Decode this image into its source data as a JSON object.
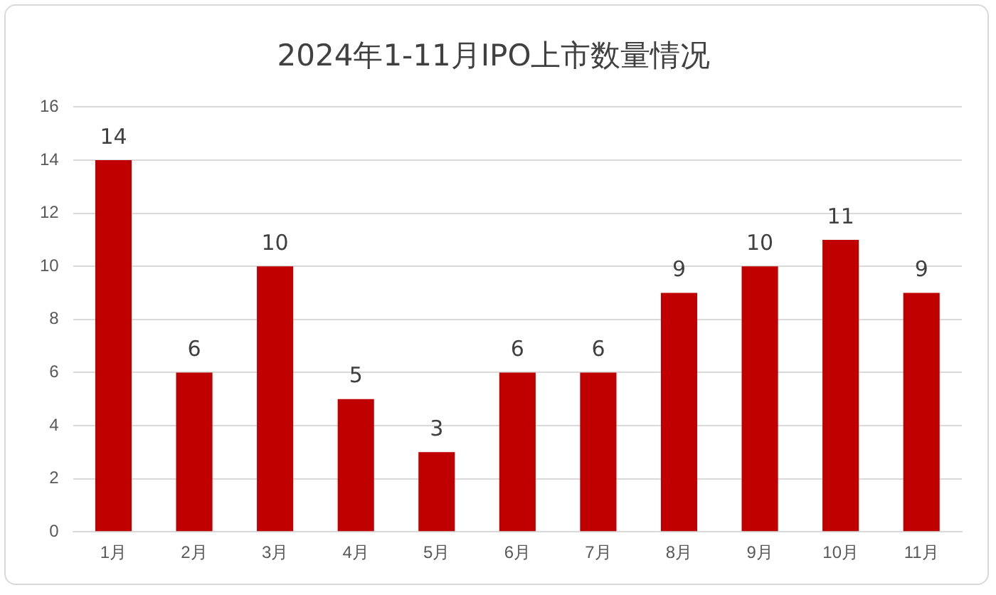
{
  "chart_data": {
    "type": "bar",
    "title": "2024年1-11月IPO上市数量情况",
    "categories": [
      "1月",
      "2月",
      "3月",
      "4月",
      "5月",
      "6月",
      "7月",
      "8月",
      "9月",
      "10月",
      "11月"
    ],
    "values": [
      14,
      6,
      10,
      5,
      3,
      6,
      6,
      9,
      10,
      11,
      9
    ],
    "color": "#c00000",
    "ylim": [
      0,
      16
    ],
    "yticks": [
      0,
      2,
      4,
      6,
      8,
      10,
      12,
      14,
      16
    ],
    "grid": "y",
    "data_labels": true
  }
}
